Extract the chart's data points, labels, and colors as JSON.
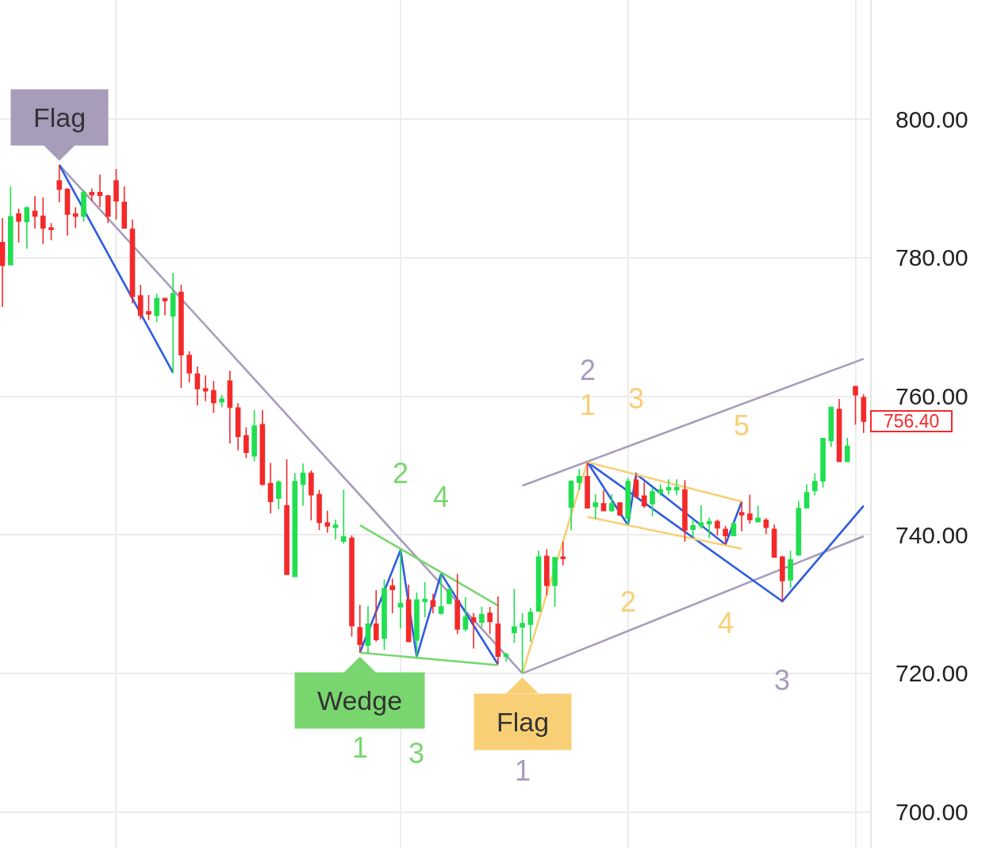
{
  "chart_data": {
    "type": "candlestick",
    "categories": [
      null,
      null,
      null,
      null,
      null,
      null,
      null,
      null,
      null,
      null,
      null,
      null,
      null,
      null,
      null,
      null,
      null,
      null,
      null,
      null,
      null,
      null,
      null,
      null,
      null,
      null,
      null,
      null,
      null,
      null,
      null,
      null,
      null,
      null,
      null,
      null,
      null,
      null,
      null,
      null,
      null,
      null,
      null,
      null,
      null,
      null,
      null,
      null,
      null,
      null,
      null,
      null,
      null,
      null,
      null,
      null,
      null,
      null,
      null,
      null,
      null,
      null,
      null,
      null,
      null,
      null,
      null,
      null,
      null,
      null,
      null,
      null,
      null,
      null,
      null,
      null,
      null,
      null,
      null,
      null,
      null,
      null,
      null,
      null,
      null,
      null,
      null,
      null,
      null,
      null,
      null,
      null,
      null,
      null,
      null,
      null,
      null,
      null,
      null,
      null,
      null,
      null,
      null,
      null,
      null,
      null,
      null
    ],
    "ohlc": [
      [
        782.2,
        785.7,
        772.9,
        778.9
      ],
      [
        779.0,
        790.3,
        779.0,
        785.9
      ],
      [
        786.3,
        787.1,
        782.2,
        785.3
      ],
      [
        785.2,
        787.4,
        781.3,
        787.2
      ],
      [
        786.7,
        788.9,
        784.2,
        786.0
      ],
      [
        786.0,
        788.7,
        782.0,
        784.3
      ],
      [
        784.3,
        785.0,
        782.5,
        784.1
      ],
      [
        791.1,
        793.4,
        788.0,
        789.9
      ],
      [
        789.9,
        790.0,
        783.2,
        786.3
      ],
      [
        786.3,
        787.3,
        784.3,
        786.0
      ],
      [
        786.0,
        789.8,
        785.2,
        789.4
      ],
      [
        789.4,
        790.0,
        788.2,
        789.1
      ],
      [
        789.4,
        792.0,
        787.3,
        789.0
      ],
      [
        788.9,
        789.1,
        785.0,
        786.0
      ],
      [
        791.1,
        792.8,
        785.5,
        788.2
      ],
      [
        788.0,
        790.3,
        784.2,
        784.3
      ],
      [
        784.1,
        785.5,
        773.4,
        774.4
      ],
      [
        774.5,
        776.1,
        771.1,
        771.7
      ],
      [
        772.2,
        774.6,
        771.0,
        771.9
      ],
      [
        771.7,
        774.8,
        770.7,
        774.1
      ],
      [
        774.1,
        774.2,
        771.7,
        773.8
      ],
      [
        771.6,
        777.8,
        763.4,
        774.8
      ],
      [
        775.0,
        776.1,
        761.2,
        766.0
      ],
      [
        765.9,
        766.5,
        762.0,
        763.4
      ],
      [
        763.2,
        764.3,
        758.7,
        761.1
      ],
      [
        761.1,
        763.0,
        759.3,
        760.8
      ],
      [
        760.8,
        762.2,
        757.6,
        759.1
      ],
      [
        759.2,
        760.2,
        758.4,
        759.6
      ],
      [
        762.2,
        763.7,
        753.2,
        758.4
      ],
      [
        758.3,
        759.0,
        752.2,
        754.2
      ],
      [
        754.3,
        755.5,
        751.1,
        751.9
      ],
      [
        751.4,
        758.0,
        750.6,
        755.7
      ],
      [
        755.9,
        758.0,
        747.1,
        747.3
      ],
      [
        747.4,
        750.4,
        743.1,
        744.8
      ],
      [
        745.3,
        747.9,
        743.7,
        747.6
      ],
      [
        744.2,
        750.9,
        734.2,
        734.3
      ],
      [
        734.0,
        748.9,
        734.0,
        747.7
      ],
      [
        747.3,
        750.3,
        744.2,
        748.9
      ],
      [
        748.9,
        749.3,
        742.1,
        745.8
      ],
      [
        745.8,
        746.5,
        740.7,
        741.8
      ],
      [
        741.7,
        743.5,
        740.3,
        741.3
      ],
      [
        741.1,
        742.2,
        739.3,
        741.4
      ],
      [
        739.1,
        746.5,
        738.7,
        739.7
      ],
      [
        739.5,
        739.9,
        725.3,
        726.9
      ],
      [
        726.6,
        729.9,
        723.0,
        724.2
      ],
      [
        724.1,
        729.7,
        722.9,
        727.1
      ],
      [
        727.1,
        732.0,
        724.6,
        724.9
      ],
      [
        725.1,
        733.6,
        723.4,
        732.2
      ],
      [
        732.6,
        733.7,
        728.7,
        732.1
      ],
      [
        729.6,
        737.8,
        726.5,
        730.1
      ],
      [
        730.6,
        732.8,
        724.5,
        724.6
      ],
      [
        724.8,
        731.7,
        722.4,
        730.6
      ],
      [
        730.4,
        733.2,
        728.1,
        730.7
      ],
      [
        730.5,
        731.5,
        728.7,
        729.7
      ],
      [
        728.7,
        734.4,
        728.5,
        729.6
      ],
      [
        730.1,
        732.4,
        730.0,
        732.1
      ],
      [
        730.5,
        734.4,
        725.7,
        726.4
      ],
      [
        726.4,
        731.0,
        726.1,
        728.1
      ],
      [
        728.0,
        728.7,
        723.6,
        727.5
      ],
      [
        727.4,
        729.6,
        726.7,
        728.5
      ],
      [
        728.7,
        729.6,
        725.7,
        727.5
      ],
      [
        727.1,
        731.1,
        721.3,
        722.5
      ],
      [
        722.5,
        723.0,
        721.7,
        722.7
      ],
      [
        725.9,
        732.2,
        724.4,
        726.7
      ],
      [
        726.7,
        728.7,
        720.0,
        727.2
      ],
      [
        727.1,
        729.5,
        724.6,
        728.8
      ],
      [
        729.0,
        737.7,
        728.9,
        736.8
      ],
      [
        736.9,
        737.9,
        731.3,
        732.7
      ],
      [
        732.7,
        736.8,
        729.6,
        736.7
      ],
      [
        736.8,
        739.0,
        735.6,
        736.6
      ],
      [
        744.0,
        747.9,
        740.7,
        747.7
      ],
      [
        747.6,
        749.5,
        746.5,
        748.4
      ],
      [
        748.4,
        750.5,
        743.8,
        743.9
      ],
      [
        744.1,
        745.9,
        742.3,
        744.6
      ],
      [
        744.5,
        746.5,
        743.4,
        743.5
      ],
      [
        743.5,
        745.9,
        743.3,
        744.5
      ],
      [
        744.6,
        744.7,
        742.7,
        742.9
      ],
      [
        742.4,
        748.2,
        741.4,
        747.7
      ],
      [
        747.9,
        748.8,
        745.3,
        745.6
      ],
      [
        745.6,
        747.6,
        743.9,
        744.2
      ],
      [
        744.5,
        746.8,
        742.7,
        746.2
      ],
      [
        746.1,
        747.3,
        745.6,
        746.5
      ],
      [
        746.5,
        748.0,
        745.8,
        746.8
      ],
      [
        746.5,
        748.0,
        745.7,
        746.8
      ],
      [
        746.5,
        747.9,
        739.0,
        740.7
      ],
      [
        740.8,
        742.2,
        739.7,
        741.3
      ],
      [
        741.3,
        744.3,
        740.9,
        741.7
      ],
      [
        741.6,
        742.5,
        739.5,
        741.9
      ],
      [
        741.9,
        742.2,
        739.9,
        741.0
      ],
      [
        740.8,
        741.3,
        738.6,
        739.9
      ],
      [
        739.9,
        741.8,
        739.9,
        741.6
      ],
      [
        743.2,
        744.8,
        740.5,
        742.9
      ],
      [
        743.0,
        745.8,
        741.6,
        742.2
      ],
      [
        741.9,
        744.2,
        741.8,
        742.4
      ],
      [
        742.1,
        742.4,
        740.1,
        741.1
      ],
      [
        740.8,
        741.5,
        736.7,
        736.8
      ],
      [
        736.8,
        737.0,
        730.4,
        733.4
      ],
      [
        733.5,
        737.7,
        732.3,
        736.4
      ],
      [
        737.1,
        744.9,
        737.0,
        743.8
      ],
      [
        743.9,
        747.3,
        743.8,
        746.1
      ],
      [
        746.4,
        748.9,
        745.7,
        747.7
      ],
      [
        747.8,
        754.0,
        746.8,
        753.9
      ],
      [
        753.6,
        758.5,
        752.7,
        758.4
      ],
      [
        758.1,
        759.6,
        750.6,
        750.6
      ],
      [
        750.6,
        754.0,
        750.6,
        752.8
      ],
      [
        761.4,
        761.5,
        755.9,
        760.2
      ],
      [
        759.8,
        760.3,
        754.7,
        756.4
      ]
    ],
    "colors": [
      "#f42a2a",
      "#20df50",
      "#f42a2a",
      "#20df50",
      "#f42a2a",
      "#f42a2a",
      "#f42a2a",
      "#f42a2a",
      "#f42a2a",
      "#f42a2a",
      "#20df50",
      "#f42a2a",
      "#f42a2a",
      "#f42a2a",
      "#f42a2a",
      "#f42a2a",
      "#f42a2a",
      "#f42a2a",
      "#f42a2a",
      "#20df50",
      "#f42a2a",
      "#20df50",
      "#f42a2a",
      "#f42a2a",
      "#f42a2a",
      "#f42a2a",
      "#f42a2a",
      "#20df50",
      "#f42a2a",
      "#f42a2a",
      "#f42a2a",
      "#20df50",
      "#f42a2a",
      "#f42a2a",
      "#20df50",
      "#f42a2a",
      "#20df50",
      "#20df50",
      "#f42a2a",
      "#f42a2a",
      "#f42a2a",
      "#20df50",
      "#20df50",
      "#f42a2a",
      "#f42a2a",
      "#20df50",
      "#f42a2a",
      "#20df50",
      "#f42a2a",
      "#20df50",
      "#f42a2a",
      "#20df50",
      "#20df50",
      "#f42a2a",
      "#20df50",
      "#20df50",
      "#f42a2a",
      "#20df50",
      "#f42a2a",
      "#20df50",
      "#f42a2a",
      "#f42a2a",
      "#20df50",
      "#20df50",
      "#20df50",
      "#20df50",
      "#20df50",
      "#f42a2a",
      "#20df50",
      "#f42a2a",
      "#20df50",
      "#20df50",
      "#f42a2a",
      "#20df50",
      "#f42a2a",
      "#20df50",
      "#f42a2a",
      "#20df50",
      "#f42a2a",
      "#f42a2a",
      "#20df50",
      "#20df50",
      "#20df50",
      "#20df50",
      "#f42a2a",
      "#20df50",
      "#20df50",
      "#20df50",
      "#f42a2a",
      "#f42a2a",
      "#20df50",
      "#f42a2a",
      "#f42a2a",
      "#20df50",
      "#f42a2a",
      "#f42a2a",
      "#f42a2a",
      "#20df50",
      "#20df50",
      "#20df50",
      "#20df50",
      "#20df50",
      "#20df50",
      "#f42a2a",
      "#20df50",
      "#f42a2a",
      "#f42a2a"
    ],
    "series": [
      {
        "type": "line",
        "color": "#a89cbb",
        "values": [
          null,
          null,
          null,
          null,
          null,
          null,
          null,
          793.4,
          null,
          null,
          null,
          null,
          null,
          null,
          null,
          null,
          null,
          null,
          null,
          null,
          null,
          null,
          null,
          null,
          null,
          null,
          null,
          null,
          null,
          null,
          null,
          null,
          null,
          null,
          null,
          null,
          null,
          null,
          null,
          null,
          null,
          null,
          null,
          null,
          null,
          null,
          null,
          null,
          null,
          null,
          null,
          null,
          null,
          null,
          null,
          null,
          null,
          null,
          null,
          null,
          null,
          null,
          null,
          null,
          720.0,
          null,
          null,
          null,
          null,
          null,
          null,
          null,
          null,
          null,
          null,
          null,
          null,
          null,
          null,
          null,
          null,
          null,
          null,
          null,
          null,
          null,
          null,
          null,
          null,
          null,
          null,
          null,
          null,
          null,
          null,
          null,
          null,
          null,
          null,
          null,
          null,
          null,
          null,
          null,
          null,
          null,
          null
        ]
      },
      {
        "type": "line",
        "color": "#a89cbb",
        "values": [
          null,
          null,
          null,
          null,
          null,
          null,
          null,
          null,
          null,
          null,
          null,
          null,
          null,
          null,
          null,
          null,
          null,
          null,
          null,
          null,
          null,
          null,
          null,
          null,
          null,
          null,
          null,
          null,
          null,
          null,
          null,
          null,
          null,
          null,
          null,
          null,
          null,
          null,
          null,
          null,
          null,
          null,
          null,
          null,
          null,
          null,
          null,
          null,
          null,
          null,
          null,
          null,
          null,
          null,
          null,
          null,
          null,
          null,
          null,
          null,
          null,
          null,
          null,
          null,
          747.1,
          null,
          null,
          null,
          null,
          null,
          null,
          null,
          null,
          null,
          null,
          null,
          null,
          null,
          null,
          null,
          null,
          null,
          null,
          null,
          null,
          null,
          null,
          null,
          null,
          null,
          null,
          null,
          null,
          null,
          null,
          null,
          null,
          null,
          null,
          null,
          null,
          null,
          null,
          null,
          null,
          null,
          765.4
        ]
      },
      {
        "type": "line",
        "color": "#a89cbb",
        "values": [
          null,
          null,
          null,
          null,
          null,
          null,
          null,
          null,
          null,
          null,
          null,
          null,
          null,
          null,
          null,
          null,
          null,
          null,
          null,
          null,
          null,
          null,
          null,
          null,
          null,
          null,
          null,
          null,
          null,
          null,
          null,
          null,
          null,
          null,
          null,
          null,
          null,
          null,
          null,
          null,
          null,
          null,
          null,
          null,
          null,
          null,
          null,
          null,
          null,
          null,
          null,
          null,
          null,
          null,
          null,
          null,
          null,
          null,
          null,
          null,
          null,
          null,
          null,
          null,
          720.0,
          null,
          null,
          null,
          null,
          null,
          null,
          null,
          null,
          null,
          null,
          null,
          null,
          null,
          null,
          null,
          null,
          null,
          null,
          null,
          null,
          null,
          null,
          null,
          null,
          null,
          null,
          null,
          null,
          null,
          null,
          null,
          null,
          null,
          null,
          null,
          null,
          null,
          null,
          null,
          null,
          null,
          739.8
        ]
      },
      {
        "type": "line",
        "color": "#2e5ce0",
        "values": [
          null,
          null,
          null,
          null,
          null,
          null,
          null,
          793.4,
          null,
          null,
          null,
          null,
          null,
          null,
          null,
          null,
          null,
          null,
          null,
          null,
          null,
          763.4,
          null,
          null,
          null,
          null,
          null,
          null,
          null,
          null,
          null,
          null,
          null,
          null,
          null,
          null,
          null,
          null,
          null,
          null,
          null,
          null,
          null,
          null,
          null,
          null,
          null,
          null,
          null,
          null,
          null,
          null,
          null,
          null,
          null,
          null,
          null,
          null,
          null,
          null,
          null,
          null,
          null,
          null,
          null,
          null,
          null,
          null,
          null,
          null,
          null,
          null,
          null,
          null,
          null,
          null,
          null,
          null,
          null,
          null,
          null,
          null,
          null,
          null,
          null,
          null,
          null,
          null,
          null,
          null,
          null,
          null,
          null,
          null,
          null,
          null,
          null,
          null,
          null,
          null,
          null,
          null,
          null,
          null,
          null,
          null,
          null
        ]
      },
      {
        "type": "line",
        "color": "#2e5ce0",
        "values": [
          null,
          null,
          null,
          null,
          null,
          null,
          null,
          null,
          null,
          null,
          null,
          null,
          null,
          null,
          null,
          null,
          null,
          null,
          null,
          null,
          null,
          null,
          null,
          null,
          null,
          null,
          null,
          null,
          null,
          null,
          null,
          null,
          null,
          null,
          null,
          null,
          null,
          null,
          null,
          null,
          null,
          null,
          null,
          null,
          723.0,
          null,
          null,
          null,
          null,
          737.8,
          null,
          722.4,
          null,
          null,
          734.4,
          null,
          null,
          null,
          null,
          null,
          null,
          721.3,
          null,
          null,
          null,
          null,
          null,
          null,
          null,
          null,
          null,
          null,
          null,
          null,
          null,
          null,
          null,
          null,
          null,
          null,
          null,
          null,
          null,
          null,
          null,
          null,
          null,
          null,
          null,
          null,
          null,
          null,
          null,
          null,
          null,
          null,
          null,
          null,
          null,
          null,
          null,
          null,
          null,
          null,
          null,
          null,
          null
        ]
      },
      {
        "type": "line",
        "color": "#2e5ce0",
        "values": [
          null,
          null,
          null,
          null,
          null,
          null,
          null,
          null,
          null,
          null,
          null,
          null,
          null,
          null,
          null,
          null,
          null,
          null,
          null,
          null,
          null,
          null,
          null,
          null,
          null,
          null,
          null,
          null,
          null,
          null,
          null,
          null,
          null,
          null,
          null,
          null,
          null,
          null,
          null,
          null,
          null,
          null,
          null,
          null,
          null,
          null,
          null,
          null,
          null,
          null,
          null,
          null,
          null,
          null,
          null,
          null,
          null,
          null,
          null,
          null,
          null,
          null,
          null,
          null,
          null,
          null,
          null,
          null,
          null,
          null,
          null,
          null,
          750.5,
          null,
          null,
          null,
          null,
          741.4,
          748.8,
          null,
          null,
          null,
          null,
          null,
          null,
          null,
          null,
          null,
          null,
          738.6,
          null,
          744.8,
          null,
          null,
          null,
          null,
          null,
          null,
          null,
          null,
          null,
          null,
          null,
          null,
          null,
          null,
          null
        ]
      },
      {
        "type": "line",
        "color": "#2e5ce0",
        "values": [
          null,
          null,
          null,
          null,
          null,
          null,
          null,
          null,
          null,
          null,
          null,
          null,
          null,
          null,
          null,
          null,
          null,
          null,
          null,
          null,
          null,
          null,
          null,
          null,
          null,
          null,
          null,
          null,
          null,
          null,
          null,
          null,
          null,
          null,
          null,
          null,
          null,
          null,
          null,
          null,
          null,
          null,
          null,
          null,
          null,
          null,
          null,
          null,
          null,
          null,
          null,
          null,
          null,
          null,
          null,
          null,
          null,
          null,
          null,
          null,
          null,
          null,
          null,
          null,
          null,
          null,
          null,
          null,
          null,
          null,
          null,
          null,
          750.5,
          null,
          null,
          null,
          null,
          null,
          null,
          null,
          null,
          null,
          null,
          null,
          null,
          null,
          null,
          null,
          null,
          null,
          null,
          null,
          null,
          null,
          null,
          null,
          730.4,
          null,
          null,
          null,
          null,
          null,
          null,
          null,
          null,
          null,
          744.2
        ]
      },
      {
        "type": "line",
        "color": "#79d66f",
        "values": [
          null,
          null,
          null,
          null,
          null,
          null,
          null,
          null,
          null,
          null,
          null,
          null,
          null,
          null,
          null,
          null,
          null,
          null,
          null,
          null,
          null,
          null,
          null,
          null,
          null,
          null,
          null,
          null,
          null,
          null,
          null,
          null,
          null,
          null,
          null,
          null,
          null,
          null,
          null,
          null,
          null,
          null,
          null,
          null,
          741.4,
          null,
          null,
          null,
          null,
          null,
          null,
          null,
          null,
          null,
          null,
          null,
          null,
          null,
          null,
          null,
          null,
          729.8,
          null,
          null,
          null,
          null,
          null,
          null,
          null,
          null,
          null,
          null,
          null,
          null,
          null,
          null,
          null,
          null,
          null,
          null,
          null,
          null,
          null,
          null,
          null,
          null,
          null,
          null,
          null,
          null,
          null,
          null,
          null,
          null,
          null,
          null,
          null,
          null,
          null,
          null,
          null,
          null,
          null,
          null,
          null,
          null,
          null
        ]
      },
      {
        "type": "line",
        "color": "#79d66f",
        "values": [
          null,
          null,
          null,
          null,
          null,
          null,
          null,
          null,
          null,
          null,
          null,
          null,
          null,
          null,
          null,
          null,
          null,
          null,
          null,
          null,
          null,
          null,
          null,
          null,
          null,
          null,
          null,
          null,
          null,
          null,
          null,
          null,
          null,
          null,
          null,
          null,
          null,
          null,
          null,
          null,
          null,
          null,
          null,
          null,
          723.0,
          null,
          null,
          null,
          null,
          null,
          null,
          null,
          null,
          null,
          null,
          null,
          null,
          null,
          null,
          null,
          null,
          721.2,
          null,
          null,
          null,
          null,
          null,
          null,
          null,
          null,
          null,
          null,
          null,
          null,
          null,
          null,
          null,
          null,
          null,
          null,
          null,
          null,
          null,
          null,
          null,
          null,
          null,
          null,
          null,
          null,
          null,
          null,
          null,
          null,
          null,
          null,
          null,
          null,
          null,
          null,
          null,
          null,
          null,
          null,
          null,
          null,
          null
        ]
      },
      {
        "type": "line",
        "color": "#f8cf75",
        "values": [
          null,
          null,
          null,
          null,
          null,
          null,
          null,
          null,
          null,
          null,
          null,
          null,
          null,
          null,
          null,
          null,
          null,
          null,
          null,
          null,
          null,
          null,
          null,
          null,
          null,
          null,
          null,
          null,
          null,
          null,
          null,
          null,
          null,
          null,
          null,
          null,
          null,
          null,
          null,
          null,
          null,
          null,
          null,
          null,
          null,
          null,
          null,
          null,
          null,
          null,
          null,
          null,
          null,
          null,
          null,
          null,
          null,
          null,
          null,
          null,
          null,
          null,
          null,
          null,
          720.0,
          null,
          null,
          null,
          null,
          null,
          null,
          null,
          750.5,
          null,
          null,
          null,
          null,
          null,
          null,
          null,
          null,
          null,
          null,
          null,
          null,
          null,
          null,
          null,
          null,
          null,
          null,
          null,
          null,
          null,
          null,
          null,
          null,
          null,
          null,
          null,
          null,
          null,
          null,
          null,
          null,
          null,
          null
        ]
      },
      {
        "type": "line",
        "color": "#f8cf75",
        "values": [
          null,
          null,
          null,
          null,
          null,
          null,
          null,
          null,
          null,
          null,
          null,
          null,
          null,
          null,
          null,
          null,
          null,
          null,
          null,
          null,
          null,
          null,
          null,
          null,
          null,
          null,
          null,
          null,
          null,
          null,
          null,
          null,
          null,
          null,
          null,
          null,
          null,
          null,
          null,
          null,
          null,
          null,
          null,
          null,
          null,
          null,
          null,
          null,
          null,
          null,
          null,
          null,
          null,
          null,
          null,
          null,
          null,
          null,
          null,
          null,
          null,
          null,
          null,
          null,
          null,
          null,
          null,
          null,
          null,
          null,
          null,
          null,
          750.5,
          null,
          null,
          null,
          null,
          null,
          null,
          null,
          null,
          null,
          null,
          null,
          null,
          null,
          null,
          null,
          null,
          null,
          null,
          744.8,
          null,
          null,
          null,
          null,
          null,
          null,
          null,
          null,
          null,
          null,
          null,
          null,
          null,
          null,
          null
        ]
      },
      {
        "type": "line",
        "color": "#f8cf75",
        "values": [
          null,
          null,
          null,
          null,
          null,
          null,
          null,
          null,
          null,
          null,
          null,
          null,
          null,
          null,
          null,
          null,
          null,
          null,
          null,
          null,
          null,
          null,
          null,
          null,
          null,
          null,
          null,
          null,
          null,
          null,
          null,
          null,
          null,
          null,
          null,
          null,
          null,
          null,
          null,
          null,
          null,
          null,
          null,
          null,
          null,
          null,
          null,
          null,
          null,
          null,
          null,
          null,
          null,
          null,
          null,
          null,
          null,
          null,
          null,
          null,
          null,
          null,
          null,
          null,
          null,
          null,
          null,
          null,
          null,
          null,
          null,
          null,
          742.6,
          null,
          null,
          null,
          null,
          null,
          null,
          null,
          null,
          null,
          null,
          null,
          null,
          null,
          null,
          null,
          null,
          null,
          null,
          738.0,
          null,
          null,
          null,
          null,
          null,
          null,
          null,
          null,
          null,
          null,
          null,
          null,
          null,
          null,
          null
        ]
      }
    ],
    "ylim": [
      694.8,
      817.2
    ],
    "yticks": [
      {
        "value": 700,
        "label": "700.00"
      },
      {
        "value": 720,
        "label": "720.00"
      },
      {
        "value": 740,
        "label": "740.00"
      },
      {
        "value": 760,
        "label": "760.00"
      },
      {
        "value": 780,
        "label": "780.00"
      },
      {
        "value": 800,
        "label": "800.00"
      }
    ],
    "grid": true,
    "tick_labels": "y",
    "annotations": [
      "Flag",
      "Wedge",
      "Flag",
      "1",
      "2",
      "3",
      "4",
      "1",
      "2",
      "3",
      "4",
      "5",
      "1",
      "2",
      "3",
      "756.40"
    ]
  }
}
